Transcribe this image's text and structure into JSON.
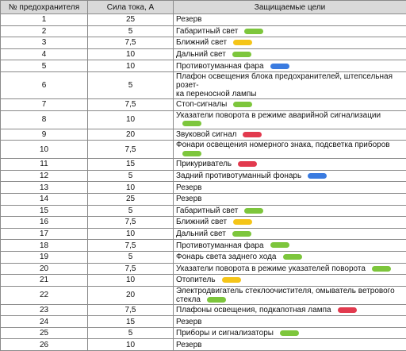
{
  "table": {
    "header": [
      "№ предохранителя",
      "Сила тока, А",
      "Защищаемые цели"
    ],
    "rows": [
      [
        "1",
        "25",
        "Резерв"
      ],
      [
        "2",
        "5",
        "Габаритный свет"
      ],
      [
        "3",
        "7,5",
        "Ближний свет"
      ],
      [
        "4",
        "10",
        "Дальний свет"
      ],
      [
        "5",
        "10",
        "Противотуманная фара"
      ],
      [
        "6",
        "5",
        "Плафон освещения блока предохранителей, штепсельная розет-\nка переносной лампы"
      ],
      [
        "7",
        "7,5",
        "Стоп-сигналы"
      ],
      [
        "8",
        "10",
        "Указатели поворота в режиме аварийной сигнализации"
      ],
      [
        "9",
        "20",
        "Звуковой сигнал"
      ],
      [
        "10",
        "7,5",
        "Фонари освещения номерного знака, подсветка приборов"
      ],
      [
        "11",
        "15",
        "Прикуриватель"
      ],
      [
        "12",
        "5",
        "Задний противотуманный фонарь"
      ],
      [
        "13",
        "10",
        "Резерв"
      ],
      [
        "14",
        "25",
        "Резерв"
      ],
      [
        "15",
        "5",
        "Габаритный свет"
      ],
      [
        "16",
        "7,5",
        "Ближний свет"
      ],
      [
        "17",
        "10",
        "Дальний свет"
      ],
      [
        "18",
        "7,5",
        "Противотуманная фара"
      ],
      [
        "19",
        "5",
        "Фонарь света заднего хода"
      ],
      [
        "20",
        "7,5",
        "Указатели поворота в режиме указателей поворота"
      ],
      [
        "21",
        "10",
        "Отопитель"
      ],
      [
        "22",
        "20",
        "Электродвигатель стеклоочистителя, омыватель ветрового стекла"
      ],
      [
        "23",
        "7,5",
        "Плафоны освещения, подкапотная лампа"
      ],
      [
        "24",
        "15",
        "Резерв"
      ],
      [
        "25",
        "5",
        "Приборы и сигнализаторы"
      ],
      [
        "26",
        "10",
        "Резерв"
      ]
    ]
  }
}
